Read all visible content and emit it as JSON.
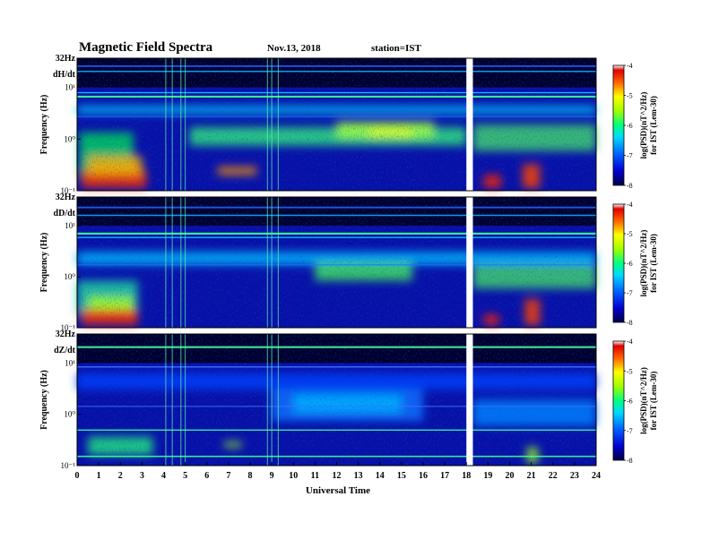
{
  "header": {
    "title": "Magnetic  Field  Spectra",
    "date": "Nov.13, 2018",
    "station": "station=IST"
  },
  "chart_data": [
    {
      "type": "heatmap",
      "component": "dH/dt",
      "top_label": "32Hz",
      "ylabel": "Frequency (Hz)",
      "yticks": [
        "10¹",
        "10⁰",
        "10⁻¹"
      ],
      "xlim": [
        0,
        24
      ],
      "data_gap": [
        18,
        18.3
      ],
      "colorbar": {
        "label": [
          "log(PSD)(nT^2/Hz)",
          "for IST (Lem-30)"
        ],
        "range": [
          -8,
          -4
        ],
        "ticks": [
          "-4",
          "-5",
          "-6",
          "-7",
          "-8"
        ]
      }
    },
    {
      "type": "heatmap",
      "component": "dD/dt",
      "top_label": "32Hz",
      "ylabel": "Frequency (Hz)",
      "yticks": [
        "10¹",
        "10⁰",
        "10⁻¹"
      ],
      "xlim": [
        0,
        24
      ],
      "data_gap": [
        18,
        18.3
      ],
      "colorbar": {
        "label": [
          "log(PSD)(nT^2/Hz)",
          "for IST (Lem-30)"
        ],
        "range": [
          -8,
          -4
        ],
        "ticks": [
          "-4",
          "-5",
          "-6",
          "-7",
          "-8"
        ]
      }
    },
    {
      "type": "heatmap",
      "component": "dZ/dt",
      "top_label": "32Hz",
      "ylabel": "Frequency (Hz)",
      "yticks": [
        "10¹",
        "10⁰",
        "10⁻¹"
      ],
      "xlim": [
        0,
        24
      ],
      "data_gap": [
        18,
        18.3
      ],
      "xlabel": "Universal Time",
      "xticks": [
        "0",
        "1",
        "2",
        "3",
        "4",
        "5",
        "6",
        "7",
        "8",
        "9",
        "10",
        "11",
        "12",
        "13",
        "14",
        "15",
        "16",
        "17",
        "18",
        "19",
        "20",
        "21",
        "22",
        "23",
        "24"
      ],
      "colorbar": {
        "label": [
          "log(PSD)(nT^2/Hz)",
          "for IST (Lem-30)"
        ],
        "range": [
          -8,
          -4
        ],
        "ticks": [
          "-4",
          "-5",
          "-6",
          "-7",
          "-8"
        ]
      }
    }
  ]
}
